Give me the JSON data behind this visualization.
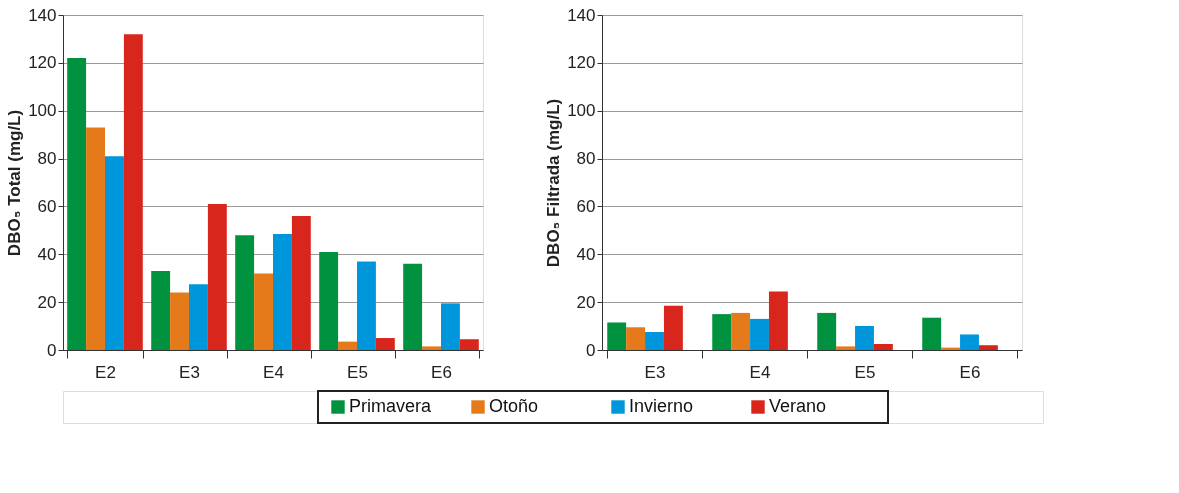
{
  "chart_data": [
    {
      "type": "bar",
      "ylabel": "DBO₅ Total (mg/L)",
      "categories": [
        "E2",
        "E3",
        "E4",
        "E5",
        "E6"
      ],
      "ylim": [
        0,
        140
      ],
      "yticks": [
        0,
        20,
        40,
        60,
        80,
        100,
        120,
        140
      ],
      "grid": "y",
      "legend": "bottom",
      "series": [
        {
          "name": "Primavera",
          "color": "#00923f",
          "values": [
            122,
            33,
            48,
            41,
            36
          ]
        },
        {
          "name": "Otoño",
          "color": "#e57a1a",
          "values": [
            93,
            24,
            32,
            3.5,
            1.5
          ]
        },
        {
          "name": "Invierno",
          "color": "#0096dc",
          "values": [
            81,
            27.5,
            48.5,
            37,
            19.5
          ]
        },
        {
          "name": "Verano",
          "color": "#d9261c",
          "values": [
            132,
            61,
            56,
            5,
            4.5
          ]
        }
      ]
    },
    {
      "type": "bar",
      "ylabel": "DBO₅ Filtrada (mg/L)",
      "categories": [
        "E3",
        "E4",
        "E5",
        "E6"
      ],
      "ylim": [
        0,
        140
      ],
      "yticks": [
        0,
        20,
        40,
        60,
        80,
        100,
        120,
        140
      ],
      "grid": "y",
      "legend": "bottom",
      "series": [
        {
          "name": "Primavera",
          "color": "#00923f",
          "values": [
            11.5,
            15,
            15.5,
            13.5
          ]
        },
        {
          "name": "Otoño",
          "color": "#e57a1a",
          "values": [
            9.5,
            15.5,
            1.5,
            1
          ]
        },
        {
          "name": "Invierno",
          "color": "#0096dc",
          "values": [
            7.5,
            13,
            10,
            6.5
          ]
        },
        {
          "name": "Verano",
          "color": "#d9261c",
          "values": [
            18.5,
            24.5,
            2.5,
            2
          ]
        }
      ]
    }
  ]
}
